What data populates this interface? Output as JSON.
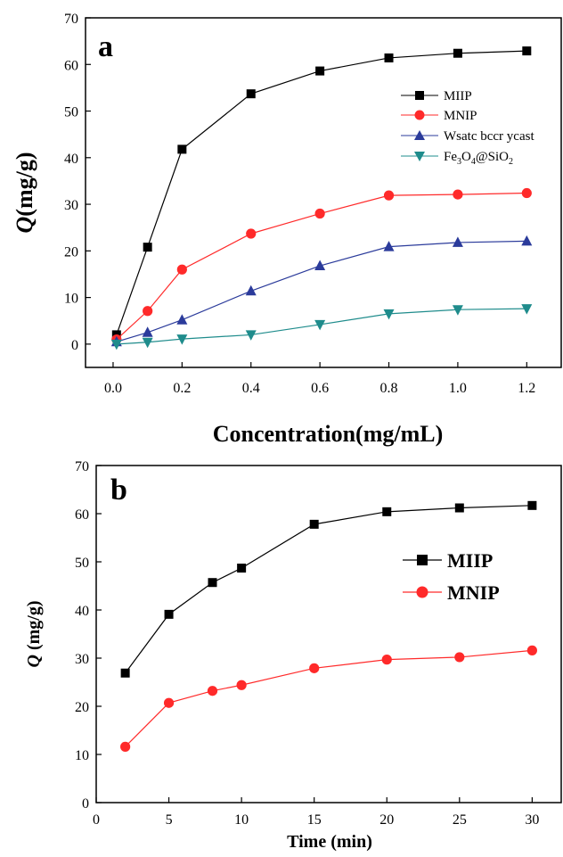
{
  "chart_data": [
    {
      "panel": "a",
      "type": "line",
      "xlabel": "Concentration(mg/mL)",
      "ylabel_italic": "Q",
      "ylabel_rest": "(mg/g)",
      "xlim": [
        -0.08,
        1.3
      ],
      "ylim": [
        -5,
        70
      ],
      "xticks": [
        0.0,
        0.2,
        0.4,
        0.6,
        0.8,
        1.0,
        1.2
      ],
      "xtick_labels": [
        "0.0",
        "0.2",
        "0.4",
        "0.6",
        "0.8",
        "1.0",
        "1.2"
      ],
      "yticks": [
        0,
        10,
        20,
        30,
        40,
        50,
        60,
        70
      ],
      "ytick_labels": [
        "0",
        "10",
        "20",
        "30",
        "40",
        "50",
        "60",
        "70"
      ],
      "legend_position": "top-right",
      "x": [
        0.01,
        0.1,
        0.2,
        0.4,
        0.6,
        0.8,
        1.0,
        1.2
      ],
      "series": [
        {
          "name": "MIIP",
          "marker": "square",
          "color": "#000000",
          "values": [
            2.0,
            20.8,
            41.8,
            53.7,
            58.6,
            61.4,
            62.4,
            62.9
          ]
        },
        {
          "name": "MNIP",
          "marker": "circle",
          "color": "#ff2a2a",
          "values": [
            1.0,
            7.1,
            16.0,
            23.7,
            28.0,
            31.9,
            32.1,
            32.4
          ]
        },
        {
          "name": "Wsatc bccr ycast",
          "marker": "triangle-up",
          "color": "#2b3b9b",
          "values": [
            0.5,
            2.5,
            5.2,
            11.4,
            16.8,
            20.9,
            21.8,
            22.1
          ]
        },
        {
          "name": "Fe3O4@SiO2",
          "marker": "triangle-down",
          "color": "#1f8c8c",
          "values": [
            0.0,
            0.4,
            1.1,
            2.0,
            4.2,
            6.5,
            7.4,
            7.6
          ]
        }
      ],
      "legend_labels": {
        "s0": "MIIP",
        "s1": "MNIP",
        "s2": "Wsatc bccr ycast",
        "s3_fe": "Fe",
        "s3_sub1": "3",
        "s3_o": "O",
        "s3_sub2": "4",
        "s3_at": "@SiO",
        "s3_sub3": "2"
      }
    },
    {
      "panel": "b",
      "type": "line",
      "xlabel": "Time (min)",
      "ylabel_italic": "Q",
      "ylabel_rest": " (mg/g)",
      "xlim": [
        0,
        32
      ],
      "ylim": [
        0,
        70
      ],
      "xticks": [
        0,
        5,
        10,
        15,
        20,
        25,
        30
      ],
      "xtick_labels": [
        "0",
        "5",
        "10",
        "15",
        "20",
        "25",
        "30"
      ],
      "yticks": [
        0,
        10,
        20,
        30,
        40,
        50,
        60,
        70
      ],
      "ytick_labels": [
        "0",
        "10",
        "20",
        "30",
        "40",
        "50",
        "60",
        "70"
      ],
      "legend_position": "top-right",
      "x": [
        2,
        5,
        8,
        10,
        15,
        20,
        25,
        30
      ],
      "series": [
        {
          "name": "MIIP",
          "marker": "square",
          "color": "#000000",
          "values": [
            26.9,
            39.1,
            45.7,
            48.7,
            57.8,
            60.4,
            61.2,
            61.7
          ]
        },
        {
          "name": "MNIP",
          "marker": "circle",
          "color": "#ff2a2a",
          "values": [
            11.6,
            20.7,
            23.2,
            24.4,
            27.9,
            29.7,
            30.2,
            31.6
          ]
        }
      ]
    }
  ],
  "panel_labels": {
    "a": "a",
    "b": "b"
  }
}
